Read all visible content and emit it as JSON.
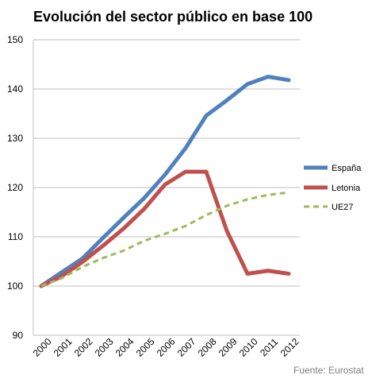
{
  "chart_data": {
    "type": "line",
    "title": "Evolución del sector público en base 100",
    "xlabel": "",
    "ylabel": "",
    "categories": [
      "2000",
      "2001",
      "2002",
      "2003",
      "2004",
      "2005",
      "2006",
      "2007",
      "2008",
      "2009",
      "2010",
      "2011",
      "2012"
    ],
    "ylim": [
      90,
      150
    ],
    "yticks": [
      90,
      100,
      110,
      120,
      130,
      140,
      150
    ],
    "grid": "horizontal",
    "legend_position": "right",
    "series": [
      {
        "name": "España",
        "color": "#4f81bd",
        "style": "solid",
        "values": [
          100,
          102.8,
          105.6,
          109.8,
          113.9,
          117.9,
          122.6,
          128.0,
          134.6,
          137.7,
          141.0,
          142.5,
          141.8
        ]
      },
      {
        "name": "Letonia",
        "color": "#c0504d",
        "style": "solid",
        "values": [
          100,
          102.0,
          104.9,
          108.2,
          111.7,
          115.7,
          120.6,
          123.2,
          123.2,
          111.2,
          102.5,
          103.1,
          102.5
        ]
      },
      {
        "name": "UE27",
        "color": "#9bbb59",
        "style": "dashed",
        "values": [
          100,
          101.6,
          103.9,
          105.7,
          107.2,
          109.2,
          110.6,
          112.2,
          114.4,
          116.3,
          117.6,
          118.5,
          119.0
        ]
      }
    ],
    "source": "Fuente: Eurostat"
  }
}
